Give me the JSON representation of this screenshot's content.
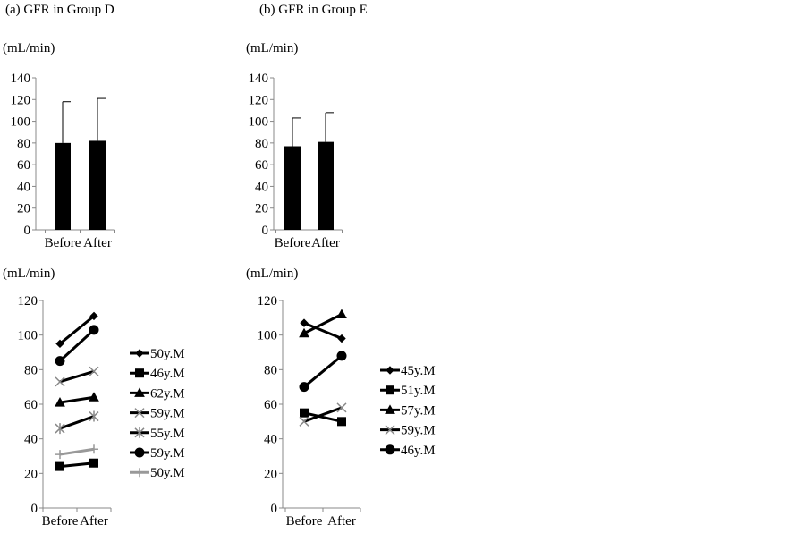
{
  "chart_data": [
    {
      "type": "bar",
      "title": "(a) GFR in Group D",
      "ylabel": "(mL/min)",
      "categories": [
        "Before",
        "After"
      ],
      "values": [
        80,
        82
      ],
      "error_upper": [
        118,
        121
      ],
      "ylim": [
        0,
        140
      ],
      "yticks": [
        0,
        20,
        40,
        60,
        80,
        100,
        120,
        140
      ],
      "bar_color": "#000000",
      "grid": false
    },
    {
      "type": "bar",
      "title": "(b) GFR in Group E",
      "ylabel": "(mL/min)",
      "categories": [
        "Before",
        "After"
      ],
      "values": [
        77,
        81
      ],
      "error_upper": [
        103,
        108
      ],
      "ylim": [
        0,
        140
      ],
      "yticks": [
        0,
        20,
        40,
        60,
        80,
        100,
        120,
        140
      ],
      "bar_color": "#000000",
      "grid": false
    },
    {
      "type": "line",
      "ylabel": "(mL/min)",
      "categories": [
        "Before",
        "After"
      ],
      "ylim": [
        0,
        120
      ],
      "yticks": [
        0,
        20,
        40,
        60,
        80,
        100,
        120
      ],
      "legend_position": "right",
      "grid": false,
      "series": [
        {
          "name": "50y.M",
          "values": [
            95,
            111
          ],
          "marker": "diamond",
          "color": "#000000"
        },
        {
          "name": "46y.M",
          "values": [
            24,
            26
          ],
          "marker": "square",
          "color": "#000000"
        },
        {
          "name": "62y.M",
          "values": [
            61,
            64
          ],
          "marker": "triangle",
          "color": "#000000"
        },
        {
          "name": "59y.M",
          "values": [
            73,
            79
          ],
          "marker": "x",
          "color": "#000000"
        },
        {
          "name": "55y.M",
          "values": [
            46,
            53
          ],
          "marker": "star",
          "color": "#000000"
        },
        {
          "name": "59y.M",
          "values": [
            85,
            103
          ],
          "marker": "circle",
          "color": "#000000"
        },
        {
          "name": "50y.M",
          "values": [
            31,
            34
          ],
          "marker": "plus",
          "color": "#999999"
        }
      ]
    },
    {
      "type": "line",
      "ylabel": "(mL/min)",
      "categories": [
        "Before",
        "After"
      ],
      "ylim": [
        0,
        120
      ],
      "yticks": [
        0,
        20,
        40,
        60,
        80,
        100,
        120
      ],
      "legend_position": "right",
      "grid": false,
      "series": [
        {
          "name": "45y.M",
          "values": [
            107,
            98
          ],
          "marker": "diamond",
          "color": "#000000"
        },
        {
          "name": "51y.M",
          "values": [
            55,
            50
          ],
          "marker": "square",
          "color": "#000000"
        },
        {
          "name": "57y.M",
          "values": [
            101,
            112
          ],
          "marker": "triangle",
          "color": "#000000"
        },
        {
          "name": "59y.M",
          "values": [
            50,
            58
          ],
          "marker": "x",
          "color": "#000000"
        },
        {
          "name": "46y.M",
          "values": [
            70,
            88
          ],
          "marker": "circle",
          "color": "#000000"
        }
      ]
    }
  ]
}
